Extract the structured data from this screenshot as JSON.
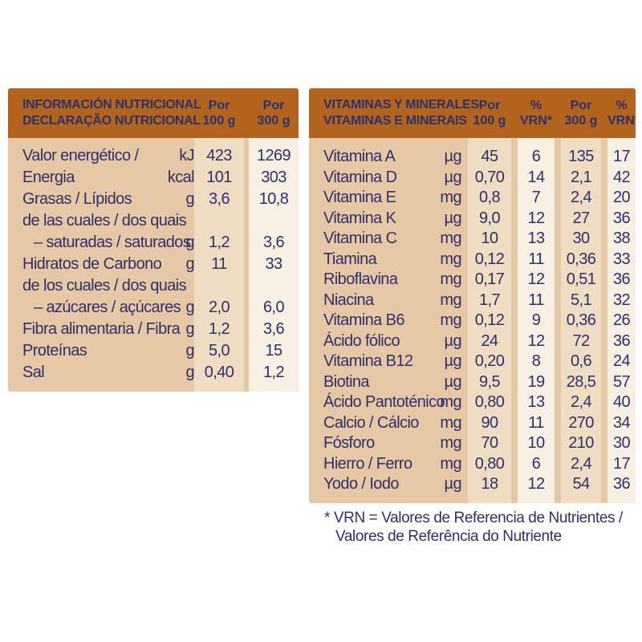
{
  "colors": {
    "page_bg": "#ffffff",
    "header_bg": "#b2641f",
    "text_navy": "#2f3069",
    "body_bg": "#e6c8a6",
    "stripe_beige": "#eedcc3",
    "stripe_cream": "#f6efe2"
  },
  "nutrition_table": {
    "title_line1": "INFORMACIÓN NUTRICIONAL",
    "title_line2": "DECLARAÇÃO NUTRICIONAL",
    "col_100": {
      "l1": "Por",
      "l2": "100 g"
    },
    "col_300": {
      "l1": "Por",
      "l2": "300 g"
    },
    "rows": [
      {
        "label": "Valor energético /",
        "unit": "kJ",
        "per100": "423",
        "per300": "1269"
      },
      {
        "label": "Energia",
        "unit": "kcal",
        "per100": "101",
        "per300": "303"
      },
      {
        "label": "Grasas / Lípidos",
        "unit": "g",
        "per100": "3,6",
        "per300": "10,8"
      },
      {
        "label": "de las cuales / dos quais",
        "unit": "",
        "per100": "",
        "per300": ""
      },
      {
        "label": "– saturadas / saturados",
        "unit": "g",
        "per100": "1,2",
        "per300": "3,6"
      },
      {
        "label": "Hidratos de Carbono",
        "unit": "g",
        "per100": "11",
        "per300": "33"
      },
      {
        "label": "de los cuales / dos quais",
        "unit": "",
        "per100": "",
        "per300": ""
      },
      {
        "label": "– azúcares / açúcares",
        "unit": "g",
        "per100": "2,0",
        "per300": "6,0"
      },
      {
        "label": "Fibra alimentaria / Fibra",
        "unit": "g",
        "per100": "1,2",
        "per300": "3,6"
      },
      {
        "label": "Proteínas",
        "unit": "g",
        "per100": "5,0",
        "per300": "15"
      },
      {
        "label": "Sal",
        "unit": "g",
        "per100": "0,40",
        "per300": "1,2"
      }
    ]
  },
  "vitamins_table": {
    "title_line1": "VITAMINAS Y MINERALES",
    "title_line2": "VITAMINAS E MINERAIS",
    "cols": [
      {
        "l1": "Por",
        "l2": "100 g"
      },
      {
        "l1": "%",
        "l2": "VRN*"
      },
      {
        "l1": "Por",
        "l2": "300 g"
      },
      {
        "l1": "%",
        "l2": "VRN*"
      }
    ],
    "rows": [
      {
        "label": "Vitamina A",
        "unit": "µg",
        "per100": "45",
        "vrn100": "6",
        "per300": "135",
        "vrn300": "17"
      },
      {
        "label": "Vitamina D",
        "unit": "µg",
        "per100": "0,70",
        "vrn100": "14",
        "per300": "2,1",
        "vrn300": "42"
      },
      {
        "label": "Vitamina E",
        "unit": "mg",
        "per100": "0,8",
        "vrn100": "7",
        "per300": "2,4",
        "vrn300": "20"
      },
      {
        "label": "Vitamina K",
        "unit": "µg",
        "per100": "9,0",
        "vrn100": "12",
        "per300": "27",
        "vrn300": "36"
      },
      {
        "label": "Vitamina C",
        "unit": "mg",
        "per100": "10",
        "vrn100": "13",
        "per300": "30",
        "vrn300": "38"
      },
      {
        "label": "Tiamina",
        "unit": "mg",
        "per100": "0,12",
        "vrn100": "11",
        "per300": "0,36",
        "vrn300": "33"
      },
      {
        "label": "Riboflavina",
        "unit": "mg",
        "per100": "0,17",
        "vrn100": "12",
        "per300": "0,51",
        "vrn300": "36"
      },
      {
        "label": "Niacina",
        "unit": "mg",
        "per100": "1,7",
        "vrn100": "11",
        "per300": "5,1",
        "vrn300": "32"
      },
      {
        "label": "Vitamina B6",
        "unit": "mg",
        "per100": "0,12",
        "vrn100": "9",
        "per300": "0,36",
        "vrn300": "26"
      },
      {
        "label": "Ácido fólico",
        "unit": "µg",
        "per100": "24",
        "vrn100": "12",
        "per300": "72",
        "vrn300": "36"
      },
      {
        "label": "Vitamina B12",
        "unit": "µg",
        "per100": "0,20",
        "vrn100": "8",
        "per300": "0,6",
        "vrn300": "24"
      },
      {
        "label": "Biotina",
        "unit": "µg",
        "per100": "9,5",
        "vrn100": "19",
        "per300": "28,5",
        "vrn300": "57"
      },
      {
        "label": "Ácido Pantoténico",
        "unit": "mg",
        "per100": "0,80",
        "vrn100": "13",
        "per300": "2,4",
        "vrn300": "40"
      },
      {
        "label": "Calcio / Cálcio",
        "unit": "mg",
        "per100": "90",
        "vrn100": "11",
        "per300": "270",
        "vrn300": "34"
      },
      {
        "label": "Fósforo",
        "unit": "mg",
        "per100": "70",
        "vrn100": "10",
        "per300": "210",
        "vrn300": "30"
      },
      {
        "label": "Hierro / Ferro",
        "unit": "mg",
        "per100": "0,80",
        "vrn100": "6",
        "per300": "2,4",
        "vrn300": "17"
      },
      {
        "label": "Yodo / Iodo",
        "unit": "µg",
        "per100": "18",
        "vrn100": "12",
        "per300": "54",
        "vrn300": "36"
      }
    ]
  },
  "footnote": {
    "line1": "* VRN = Valores de Referencia de Nutrientes /",
    "line2": "Valores de Referência do Nutriente"
  }
}
